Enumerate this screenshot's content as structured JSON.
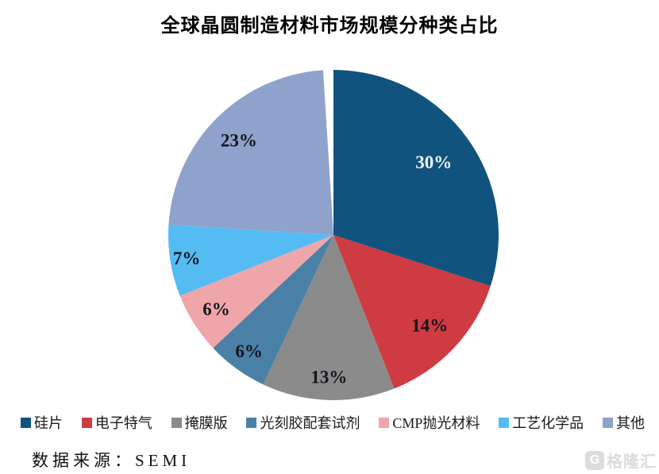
{
  "title": "全球晶圆制造材料市场规模分种类占比",
  "chart_data": {
    "type": "pie",
    "title": "全球晶圆制造材料市场规模分种类占比",
    "unit": "percent",
    "start_angle_deg": 0,
    "direction": "clockwise",
    "legend_position": "bottom",
    "categories": [
      "硅片",
      "电子特气",
      "掩膜版",
      "光刻胶配套试剂",
      "CMP抛光材料",
      "工艺化学品",
      "其他"
    ],
    "values": [
      30,
      14,
      13,
      6,
      6,
      7,
      23
    ],
    "slices": [
      {
        "label": "硅片",
        "value": 30,
        "pct_label": "30%",
        "color": "#11537f",
        "label_color": "#f2f5f8"
      },
      {
        "label": "电子特气",
        "value": 14,
        "pct_label": "14%",
        "color": "#cf3b42",
        "label_color": "#15151e"
      },
      {
        "label": "掩膜版",
        "value": 13,
        "pct_label": "13%",
        "color": "#8b8b8b",
        "label_color": "#15151e"
      },
      {
        "label": "光刻胶配套试剂",
        "value": 6,
        "pct_label": "6%",
        "color": "#4b80a6",
        "label_color": "#15151e"
      },
      {
        "label": "CMP抛光材料",
        "value": 6,
        "pct_label": "6%",
        "color": "#efa6ab",
        "label_color": "#15151e"
      },
      {
        "label": "工艺化学品",
        "value": 7,
        "pct_label": "7%",
        "color": "#54bcf2",
        "label_color": "#15151e"
      },
      {
        "label": "其他",
        "value": 23,
        "pct_label": "23%",
        "color": "#8fa2cb",
        "label_color": "#15151e"
      }
    ]
  },
  "source": {
    "text": "数据来源：SEMI"
  },
  "watermark": {
    "icon_letter": "G",
    "text": "格隆汇",
    "color": "#dadada"
  }
}
